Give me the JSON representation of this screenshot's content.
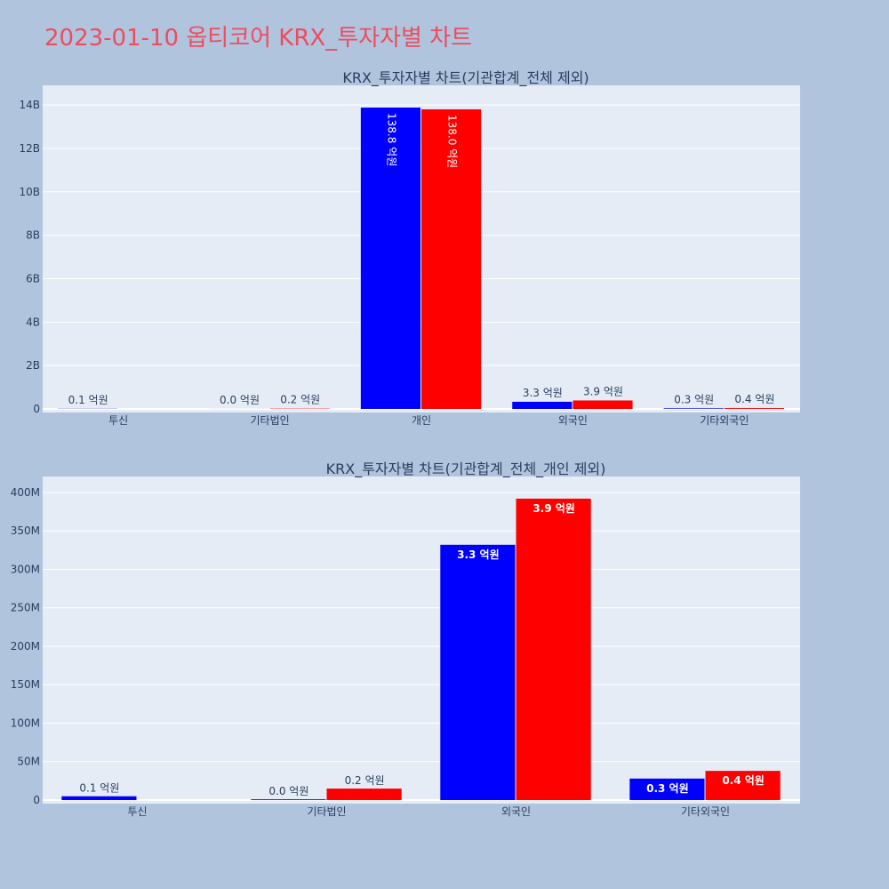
{
  "title": "2023-01-10 옵티코어 KRX_투자자별 차트",
  "colors": {
    "buy": "#0000ff",
    "sell": "#ff0000",
    "plot_bg": "#e5ecf6",
    "page_bg": "#b0c4de"
  },
  "chart_data": [
    {
      "type": "bar",
      "title": "KRX_투자자별 차트(기관합계_전체 제외)",
      "categories": [
        "투신",
        "기타법인",
        "개인",
        "외국인",
        "기타외국인"
      ],
      "ylim": [
        0,
        14700000000
      ],
      "yticks": [
        {
          "value": 0,
          "label": "0"
        },
        {
          "value": 2000000000,
          "label": "2B"
        },
        {
          "value": 4000000000,
          "label": "4B"
        },
        {
          "value": 6000000000,
          "label": "6B"
        },
        {
          "value": 8000000000,
          "label": "8B"
        },
        {
          "value": 10000000000,
          "label": "10B"
        },
        {
          "value": 12000000000,
          "label": "12B"
        },
        {
          "value": 14000000000,
          "label": "14B"
        }
      ],
      "grid": true,
      "series": [
        {
          "color": "#0000ff",
          "values": [
            8000000,
            2000000,
            13880000000,
            330000000,
            27000000
          ],
          "labels": [
            "0.1 억원",
            "0.0 억원",
            "138.8 억원",
            "3.3 억원",
            "0.3 억원"
          ]
        },
        {
          "color": "#ff0000",
          "values": [
            0,
            15000000,
            13800000000,
            390000000,
            37000000
          ],
          "labels": [
            "",
            "0.2 억원",
            "138.0 억원",
            "3.9 억원",
            "0.4 억원"
          ]
        }
      ]
    },
    {
      "type": "bar",
      "title": "KRX_투자자별 차트(기관합계_전체_개인 제외)",
      "categories": [
        "투신",
        "기타법인",
        "외국인",
        "기타외국인"
      ],
      "ylim": [
        0,
        415000000
      ],
      "yticks": [
        {
          "value": 0,
          "label": "0"
        },
        {
          "value": 50000000,
          "label": "50M"
        },
        {
          "value": 100000000,
          "label": "100M"
        },
        {
          "value": 150000000,
          "label": "150M"
        },
        {
          "value": 200000000,
          "label": "200M"
        },
        {
          "value": 250000000,
          "label": "250M"
        },
        {
          "value": 300000000,
          "label": "300M"
        },
        {
          "value": 350000000,
          "label": "350M"
        },
        {
          "value": 400000000,
          "label": "400M"
        }
      ],
      "grid": true,
      "series": [
        {
          "color": "#0000ff",
          "values": [
            5000000,
            1000000,
            332000000,
            28000000
          ],
          "labels": [
            "0.1 억원",
            "0.0 억원",
            "3.3 억원",
            "0.3 억원"
          ]
        },
        {
          "color": "#ff0000",
          "values": [
            0,
            15000000,
            392000000,
            38000000
          ],
          "labels": [
            "",
            "0.2 억원",
            "3.9 억원",
            "0.4 억원"
          ]
        }
      ]
    }
  ]
}
